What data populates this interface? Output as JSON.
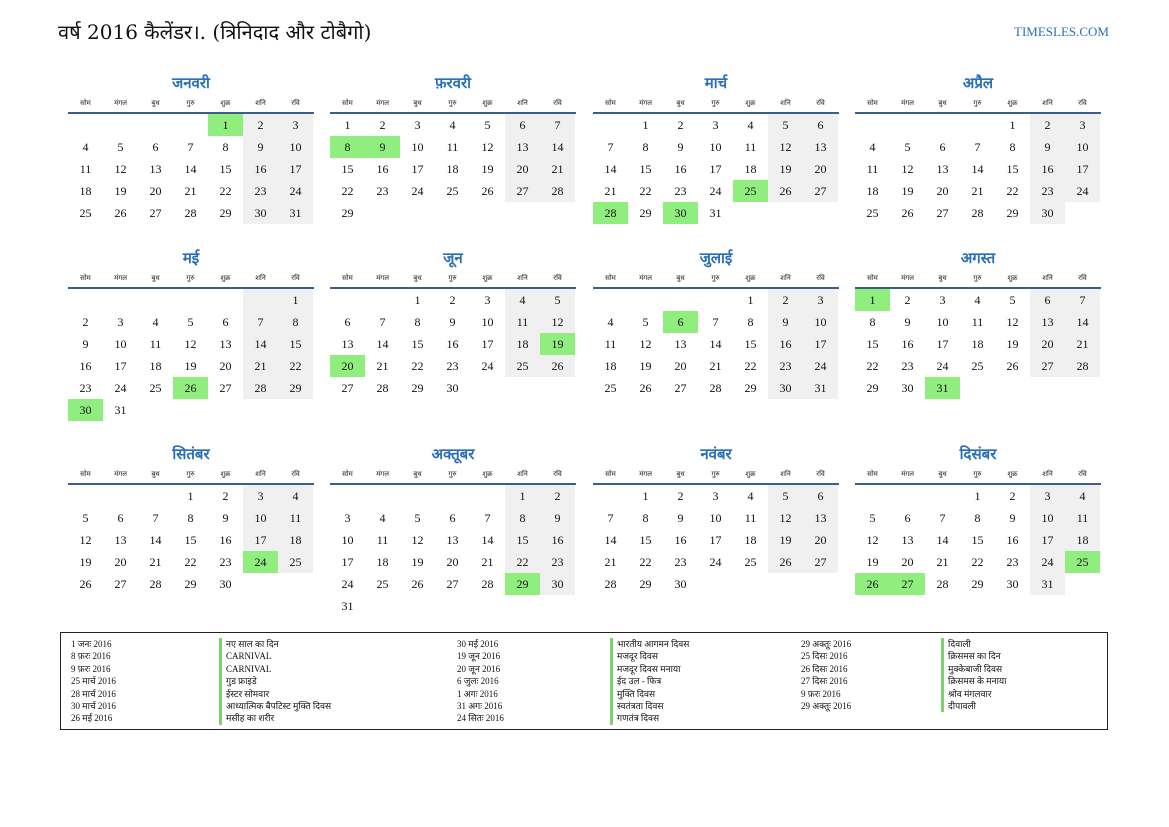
{
  "title": "वर्ष 2016 कैलेंडर।. (त्रिनिदाद और टोबैगो)",
  "site": "TIMESLES.COM",
  "weekdays": [
    "सोम",
    "मंगल",
    "बुध",
    "गुरु",
    "शुक्र",
    "शनि",
    "रवि"
  ],
  "months": [
    {
      "name": "जनवरी",
      "offset": 4,
      "days": 31,
      "holidays": [
        1
      ]
    },
    {
      "name": "फ़रवरी",
      "offset": 0,
      "days": 29,
      "holidays": [
        8,
        9
      ]
    },
    {
      "name": "मार्च",
      "offset": 1,
      "days": 31,
      "holidays": [
        25,
        28,
        30
      ]
    },
    {
      "name": "अप्रैल",
      "offset": 4,
      "days": 30,
      "holidays": []
    },
    {
      "name": "मई",
      "offset": 6,
      "days": 31,
      "holidays": [
        26,
        30
      ]
    },
    {
      "name": "जून",
      "offset": 2,
      "days": 30,
      "holidays": [
        19,
        20
      ]
    },
    {
      "name": "जुलाई",
      "offset": 4,
      "days": 31,
      "holidays": [
        6
      ]
    },
    {
      "name": "अगस्त",
      "offset": 0,
      "days": 31,
      "holidays": [
        1,
        31
      ]
    },
    {
      "name": "सितंबर",
      "offset": 3,
      "days": 30,
      "holidays": [
        24
      ]
    },
    {
      "name": "अक्तूबर",
      "offset": 5,
      "days": 31,
      "holidays": [
        29
      ]
    },
    {
      "name": "नवंबर",
      "offset": 1,
      "days": 30,
      "holidays": []
    },
    {
      "name": "दिसंबर",
      "offset": 3,
      "days": 31,
      "holidays": [
        25,
        26,
        27
      ]
    }
  ],
  "legend": [
    [
      {
        "date": "1 जनः 2016",
        "name": "नए साल का दिन"
      },
      {
        "date": "8 फ़रः 2016",
        "name": "CARNIVAL"
      },
      {
        "date": "9 फ़रः 2016",
        "name": "CARNIVAL"
      },
      {
        "date": "25 मार्च 2016",
        "name": "गुड फ्राइडे"
      },
      {
        "date": "28 मार्च 2016",
        "name": "ईस्टर सोमवार"
      },
      {
        "date": "30 मार्च 2016",
        "name": "आध्यात्मिक बैपटिस्ट मुक्ति दिवस"
      },
      {
        "date": "26 मई 2016",
        "name": "मसीह का शरीर"
      }
    ],
    [
      {
        "date": "30 मई 2016",
        "name": "भारतीय आगमन दिवस"
      },
      {
        "date": "19 जून 2016",
        "name": "मजदूर दिवस"
      },
      {
        "date": "20 जून 2016",
        "name": "मजदूर दिवस मनाया"
      },
      {
        "date": "6 जुलः 2016",
        "name": "ईद उल - फित्र"
      },
      {
        "date": "1 अगः 2016",
        "name": "मुक्ति दिवस"
      },
      {
        "date": "31 अगः 2016",
        "name": "स्वतंत्रता दिवस"
      },
      {
        "date": "24 सितः 2016",
        "name": "गणतंत्र दिवस"
      }
    ],
    [
      {
        "date": "29 अक्तूः 2016",
        "name": "दिवाली"
      },
      {
        "date": "25 दिसः 2016",
        "name": "क्रिसमस का दिन"
      },
      {
        "date": "26 दिसः 2016",
        "name": "मुक्केबाजी दिवस"
      },
      {
        "date": "27 दिसः 2016",
        "name": "क्रिसमस के मनाया"
      },
      {
        "date": "9 फ़रः 2016",
        "name": "श्रोव मंगलवार"
      },
      {
        "date": "29 अक्तूः 2016",
        "name": "दीपावली"
      }
    ]
  ]
}
